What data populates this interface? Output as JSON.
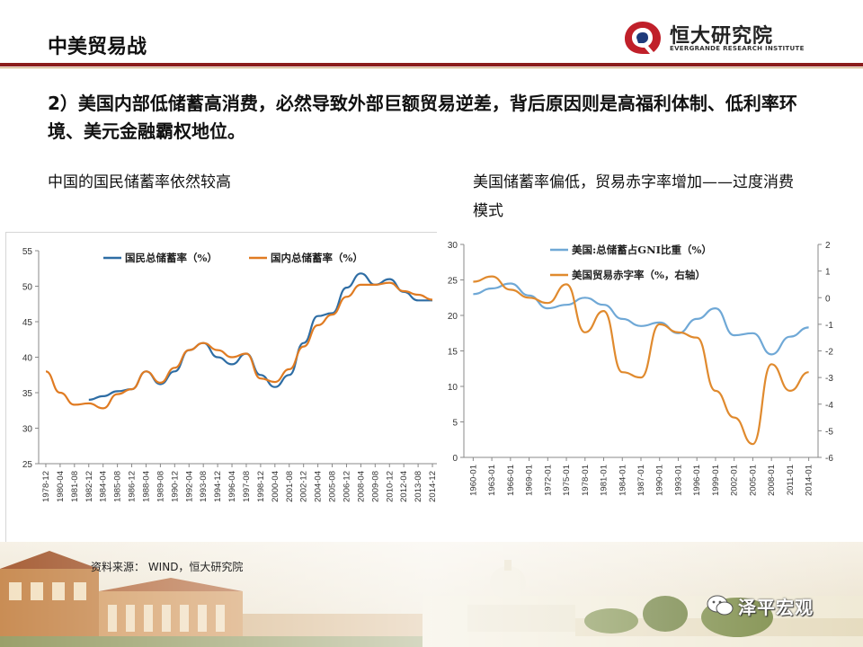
{
  "header": {
    "title": "中美贸易战"
  },
  "logo": {
    "name_cn": "恒大研究院",
    "name_en": "EVERGRANDE RESEARCH INSTITUTE"
  },
  "headline": "2）美国内部低储蓄高消费，必然导致外部巨额贸易逆差，背后原因则是高福利体制、低利率环境、美元金融霸权地位。",
  "subtitle_left": "中国的国民储蓄率依然较高",
  "subtitle_right": "美国储蓄率偏低，贸易赤字率增加——过度消费模式",
  "source": "资料来源： WIND，恒大研究院",
  "watermark": "泽平宏观",
  "colors": {
    "blue": "#2e6da4",
    "orange": "#e07b22",
    "us_blue": "#6fa8d6",
    "us_orange": "#e08a2e",
    "rule": "#8b1c1c"
  },
  "chart_data": [
    {
      "type": "line",
      "ylim": [
        25,
        55
      ],
      "yticks": [
        "25",
        "30",
        "35",
        "40",
        "45",
        "50",
        "55"
      ],
      "x": [
        "1978-12",
        "1980-04",
        "1981-08",
        "1982-12",
        "1984-04",
        "1985-08",
        "1986-12",
        "1988-04",
        "1989-08",
        "1990-12",
        "1992-04",
        "1993-08",
        "1994-12",
        "1996-04",
        "1997-08",
        "1998-12",
        "2000-04",
        "2001-08",
        "2002-12",
        "2004-04",
        "2005-08",
        "2006-12",
        "2008-04",
        "2009-08",
        "2010-12",
        "2012-04",
        "2013-08",
        "2014-12"
      ],
      "series": [
        {
          "name": "国民总储蓄率（%）",
          "color": "#2e6da4",
          "values": [
            null,
            null,
            null,
            34,
            34.5,
            35.2,
            35.5,
            38,
            36.2,
            38,
            41,
            42,
            40,
            39,
            40.5,
            37.5,
            35.8,
            37.5,
            42,
            45.8,
            46.2,
            49.8,
            51.8,
            50.2,
            51,
            49.2,
            48,
            48
          ]
        },
        {
          "name": "国内总储蓄率（%）",
          "color": "#e07b22",
          "values": [
            38,
            35,
            33.3,
            33.5,
            32.8,
            34.8,
            35.5,
            38,
            36.4,
            38.5,
            41,
            42,
            41,
            40,
            40.5,
            37,
            36.5,
            38.3,
            41.5,
            44.5,
            46,
            48.5,
            50.2,
            50.2,
            50.5,
            49.3,
            48.8,
            48.1
          ]
        }
      ]
    },
    {
      "type": "line",
      "ylim": [
        0,
        30
      ],
      "y2lim": [
        -6,
        2
      ],
      "yticks": [
        "0",
        "5",
        "10",
        "15",
        "20",
        "25",
        "30"
      ],
      "y2ticks": [
        "-6",
        "-5",
        "-4",
        "-3",
        "-2",
        "-1",
        "0",
        "1",
        "2"
      ],
      "x": [
        "1960-01",
        "1963-01",
        "1966-01",
        "1969-01",
        "1972-01",
        "1975-01",
        "1978-01",
        "1981-01",
        "1984-01",
        "1987-01",
        "1990-01",
        "1993-01",
        "1996-01",
        "1999-01",
        "2002-01",
        "2005-01",
        "2008-01",
        "2011-01",
        "2014-01"
      ],
      "series": [
        {
          "name": "美国:总储蓄占GNI比重（%）",
          "color": "#6fa8d6",
          "axis": "left",
          "values": [
            23,
            23.8,
            24.5,
            22.8,
            21,
            21.5,
            22.5,
            21.5,
            19.5,
            18.5,
            19,
            17.5,
            19.5,
            21,
            17.2,
            17.5,
            14.5,
            17,
            18.3
          ]
        },
        {
          "name": "美国贸易赤字率（%，右轴）",
          "color": "#e08a2e",
          "axis": "right",
          "values": [
            0.6,
            0.8,
            0.3,
            0,
            -0.2,
            0.5,
            -1.3,
            -0.5,
            -2.8,
            -3,
            -1,
            -1.3,
            -1.5,
            -3.5,
            -4.5,
            -5.5,
            -2.5,
            -3.5,
            -2.8
          ]
        }
      ]
    }
  ]
}
